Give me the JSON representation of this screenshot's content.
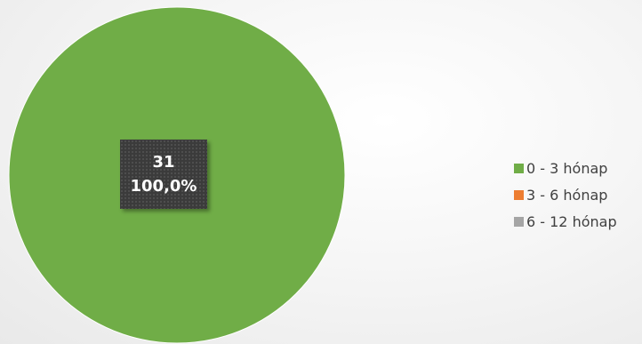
{
  "chart_data": {
    "type": "pie",
    "categories": [
      "0 - 3 hónap",
      "3 - 6 hónap",
      "6 - 12 hónap"
    ],
    "values": [
      31,
      0,
      0
    ],
    "colors": [
      "#70ad47",
      "#ed7d31",
      "#a5a5a5"
    ],
    "data_label": {
      "count": "31",
      "percent": "100,0%"
    },
    "legend_position": "right"
  }
}
